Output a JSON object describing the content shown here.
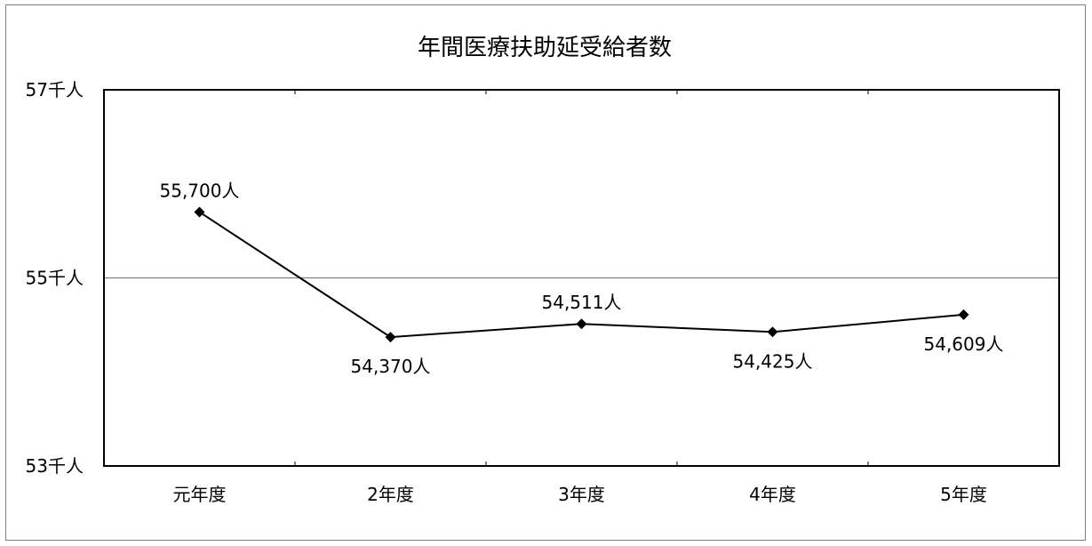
{
  "chart_data": {
    "type": "line",
    "title": "年間医療扶助延受給者数",
    "categories": [
      "元年度",
      "2年度",
      "3年度",
      "4年度",
      "5年度"
    ],
    "series": [
      {
        "values": [
          55700,
          54370,
          54511,
          54425,
          54609
        ],
        "data_labels": [
          "55,700人",
          "54,370人",
          "54,511人",
          "54,425人",
          "54,609人"
        ]
      }
    ],
    "ylim": [
      53000,
      57000
    ],
    "y_ticks": [
      {
        "value": 57000,
        "label": "57千人"
      },
      {
        "value": 55000,
        "label": "55千人"
      },
      {
        "value": 53000,
        "label": "53千人"
      }
    ],
    "gridlines": [
      55000
    ],
    "grid": true,
    "legend": false,
    "colors": {
      "line": "#000000",
      "marker": "#000000",
      "gridline": "#7f7f7f",
      "frame": "#7f7f7f"
    },
    "marker": "diamond"
  }
}
